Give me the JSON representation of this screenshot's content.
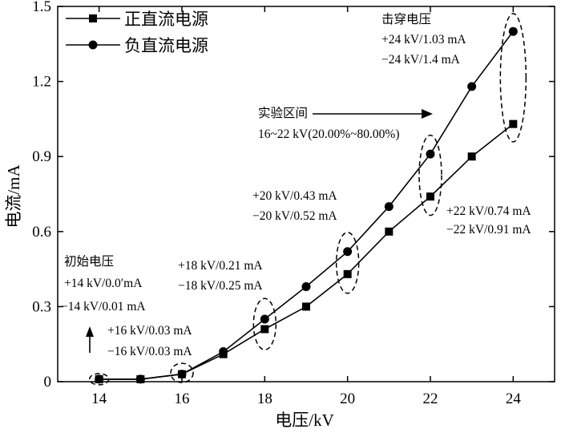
{
  "chart_data": {
    "type": "line",
    "title": "",
    "xlabel": "电压/kV",
    "ylabel": "电流/mA",
    "xlim": [
      13,
      25
    ],
    "ylim": [
      0,
      1.5
    ],
    "xticks": [
      14,
      16,
      18,
      20,
      22,
      24
    ],
    "yticks": [
      0,
      0.3,
      0.6,
      0.9,
      1.2,
      1.5
    ],
    "x_tick_labels": [
      "14",
      "16",
      "18",
      "20",
      "22",
      "24"
    ],
    "y_tick_labels": [
      "0",
      "0.3",
      "0.6",
      "0.9",
      "1.2",
      "1.5"
    ],
    "grid": false,
    "legend_position": "top-left",
    "x": [
      14,
      15,
      16,
      17,
      18,
      19,
      20,
      21,
      22,
      23,
      24
    ],
    "series": [
      {
        "name": "正直流电源",
        "marker": "square",
        "values": [
          0.01,
          0.01,
          0.03,
          0.11,
          0.21,
          0.3,
          0.43,
          0.6,
          0.74,
          0.9,
          1.03
        ]
      },
      {
        "name": "负直流电源",
        "marker": "circle",
        "values": [
          0.01,
          0.01,
          0.03,
          0.12,
          0.25,
          0.38,
          0.52,
          0.7,
          0.91,
          1.18,
          1.4
        ]
      }
    ],
    "annotations": {
      "breakdown": {
        "title": "击穿电压",
        "pos": "+24 kV/1.03 mA",
        "neg": "−24 kV/1.4 mA"
      },
      "range": {
        "title": "实验区间",
        "detail": "16~22 kV(20.00%~80.00%)"
      },
      "p22": {
        "pos": "+22 kV/0.74 mA",
        "neg": "−22 kV/0.91 mA"
      },
      "p20": {
        "pos": "+20 kV/0.43 mA",
        "neg": "−20 kV/0.52 mA"
      },
      "p18": {
        "pos": "+18 kV/0.21 mA",
        "neg": "−18 kV/0.25 mA"
      },
      "initial": {
        "title": "初始电压",
        "pos": "+14 kV/0.0′mA",
        "neg": "−14 kV/0.01 mA"
      },
      "p16": {
        "pos": "+16 kV/0.03 mA",
        "neg": "−16 kV/0.03 mA"
      }
    }
  }
}
